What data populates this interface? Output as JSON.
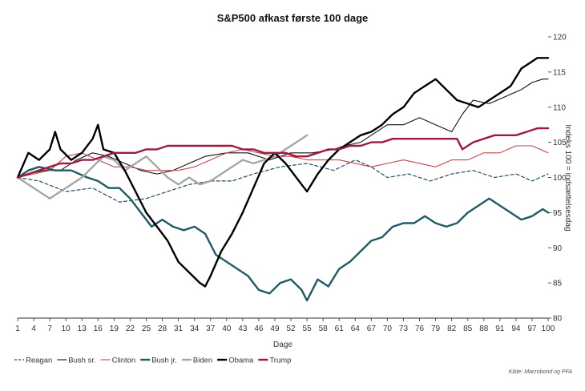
{
  "chart_data": {
    "type": "line",
    "title": "S&P500 afkast første 100 dage",
    "xlabel": "Dage",
    "ylabel": "Indeks 100 = indsættelsesdag",
    "source": "Kilde: Macrobond og PFA",
    "xlim": [
      1,
      100
    ],
    "ylim": [
      80,
      120
    ],
    "x_ticks": [
      1,
      4,
      7,
      10,
      13,
      16,
      19,
      22,
      25,
      28,
      31,
      34,
      37,
      40,
      43,
      46,
      49,
      52,
      55,
      58,
      61,
      64,
      67,
      70,
      73,
      76,
      79,
      82,
      85,
      88,
      91,
      94,
      97,
      100
    ],
    "y_ticks": [
      80,
      85,
      90,
      95,
      100,
      105,
      110,
      115,
      120
    ],
    "series": [
      {
        "name": "Reagan",
        "color": "#1f4e6b",
        "style": "dashed",
        "points": [
          [
            1,
            100
          ],
          [
            5,
            99.5
          ],
          [
            10,
            98
          ],
          [
            15,
            98.5
          ],
          [
            20,
            96.5
          ],
          [
            25,
            97
          ],
          [
            29,
            98
          ],
          [
            33,
            99
          ],
          [
            37,
            99.5
          ],
          [
            41,
            99.5
          ],
          [
            45,
            100.5
          ],
          [
            50,
            101.5
          ],
          [
            55,
            102
          ],
          [
            60,
            101
          ],
          [
            64,
            102.5
          ],
          [
            67,
            101.5
          ],
          [
            70,
            100
          ],
          [
            74,
            100.5
          ],
          [
            78,
            99.5
          ],
          [
            82,
            100.5
          ],
          [
            86,
            101
          ],
          [
            90,
            100
          ],
          [
            94,
            100.5
          ],
          [
            97,
            99.5
          ],
          [
            100,
            100.5
          ]
        ]
      },
      {
        "name": "Bush sr.",
        "color": "#111111",
        "style": "thin",
        "points": [
          [
            1,
            100
          ],
          [
            3,
            100.5
          ],
          [
            6,
            101
          ],
          [
            9,
            101
          ],
          [
            12,
            102.5
          ],
          [
            15,
            103.5
          ],
          [
            18,
            103
          ],
          [
            21,
            102
          ],
          [
            24,
            101
          ],
          [
            27,
            100.5
          ],
          [
            30,
            101
          ],
          [
            33,
            102
          ],
          [
            36,
            103
          ],
          [
            40,
            103.5
          ],
          [
            44,
            103.5
          ],
          [
            48,
            102.5
          ],
          [
            52,
            103.5
          ],
          [
            56,
            103.5
          ],
          [
            60,
            104
          ],
          [
            62,
            104.5
          ],
          [
            65,
            105
          ],
          [
            67,
            106
          ],
          [
            70,
            107.5
          ],
          [
            73,
            107.5
          ],
          [
            76,
            108.5
          ],
          [
            79,
            107.5
          ],
          [
            82,
            106.5
          ],
          [
            84,
            109
          ],
          [
            86,
            111
          ],
          [
            89,
            110.5
          ],
          [
            92,
            111.5
          ],
          [
            95,
            112.5
          ],
          [
            97,
            113.5
          ],
          [
            99,
            114
          ],
          [
            100,
            114
          ]
        ]
      },
      {
        "name": "Clinton",
        "color": "#c0464e",
        "style": "thin",
        "points": [
          [
            1,
            100
          ],
          [
            4,
            100.5
          ],
          [
            7,
            101
          ],
          [
            10,
            103
          ],
          [
            13,
            103.5
          ],
          [
            16,
            102.5
          ],
          [
            19,
            101.5
          ],
          [
            22,
            101.5
          ],
          [
            25,
            101
          ],
          [
            28,
            101
          ],
          [
            31,
            101
          ],
          [
            34,
            101.5
          ],
          [
            37,
            102.5
          ],
          [
            40,
            103.5
          ],
          [
            43,
            104
          ],
          [
            46,
            103.5
          ],
          [
            49,
            103
          ],
          [
            52,
            103
          ],
          [
            55,
            102.5
          ],
          [
            58,
            102.5
          ],
          [
            61,
            102.5
          ],
          [
            64,
            102
          ],
          [
            67,
            101.5
          ],
          [
            70,
            102
          ],
          [
            73,
            102.5
          ],
          [
            76,
            102
          ],
          [
            79,
            101.5
          ],
          [
            82,
            102.5
          ],
          [
            85,
            102.5
          ],
          [
            88,
            103.5
          ],
          [
            91,
            103.5
          ],
          [
            94,
            104.5
          ],
          [
            97,
            104.5
          ],
          [
            100,
            103.5
          ]
        ]
      },
      {
        "name": "Bush jr.",
        "color": "#1f5a66",
        "style": "thick",
        "points": [
          [
            1,
            100
          ],
          [
            3,
            101
          ],
          [
            5,
            101.5
          ],
          [
            8,
            101
          ],
          [
            11,
            101
          ],
          [
            14,
            100
          ],
          [
            16,
            99.5
          ],
          [
            18,
            98.5
          ],
          [
            20,
            98.5
          ],
          [
            22,
            97
          ],
          [
            24,
            95
          ],
          [
            26,
            93
          ],
          [
            28,
            94
          ],
          [
            30,
            93
          ],
          [
            32,
            92.5
          ],
          [
            34,
            93
          ],
          [
            36,
            92
          ],
          [
            38,
            89
          ],
          [
            40,
            88
          ],
          [
            42,
            87
          ],
          [
            44,
            86
          ],
          [
            46,
            84
          ],
          [
            48,
            83.5
          ],
          [
            50,
            85
          ],
          [
            52,
            85.5
          ],
          [
            54,
            84
          ],
          [
            55,
            82.5
          ],
          [
            57,
            85.5
          ],
          [
            59,
            84.5
          ],
          [
            61,
            87
          ],
          [
            63,
            88
          ],
          [
            65,
            89.5
          ],
          [
            67,
            91
          ],
          [
            69,
            91.5
          ],
          [
            71,
            93
          ],
          [
            73,
            93.5
          ],
          [
            75,
            93.5
          ],
          [
            77,
            94.5
          ],
          [
            79,
            93.5
          ],
          [
            81,
            93
          ],
          [
            83,
            93.5
          ],
          [
            85,
            95
          ],
          [
            87,
            96
          ],
          [
            89,
            97
          ],
          [
            91,
            96
          ],
          [
            93,
            95
          ],
          [
            95,
            94
          ],
          [
            97,
            94.5
          ],
          [
            99,
            95.5
          ],
          [
            100,
            95
          ]
        ]
      },
      {
        "name": "Biden",
        "color": "#a6a6a6",
        "style": "thick",
        "points": [
          [
            1,
            100
          ],
          [
            3,
            99
          ],
          [
            5,
            98
          ],
          [
            7,
            97
          ],
          [
            9,
            98
          ],
          [
            11,
            99
          ],
          [
            13,
            100
          ],
          [
            15,
            101.5
          ],
          [
            17,
            103
          ],
          [
            19,
            102.5
          ],
          [
            21,
            101
          ],
          [
            23,
            102
          ],
          [
            25,
            103
          ],
          [
            27,
            101.5
          ],
          [
            29,
            100
          ],
          [
            31,
            99
          ],
          [
            33,
            100
          ],
          [
            35,
            99
          ],
          [
            37,
            99.5
          ],
          [
            39,
            100.5
          ],
          [
            41,
            101.5
          ],
          [
            43,
            102.5
          ],
          [
            45,
            102
          ],
          [
            47,
            102.5
          ],
          [
            49,
            103
          ],
          [
            51,
            104
          ],
          [
            53,
            105
          ],
          [
            55,
            106
          ]
        ]
      },
      {
        "name": "Obama",
        "color": "#000000",
        "style": "thick",
        "points": [
          [
            1,
            100
          ],
          [
            3,
            103.5
          ],
          [
            5,
            102.5
          ],
          [
            7,
            104
          ],
          [
            8,
            106.5
          ],
          [
            9,
            104
          ],
          [
            11,
            102.5
          ],
          [
            13,
            103.5
          ],
          [
            15,
            105.5
          ],
          [
            16,
            107.5
          ],
          [
            17,
            104
          ],
          [
            19,
            103.5
          ],
          [
            21,
            101
          ],
          [
            23,
            98
          ],
          [
            25,
            95
          ],
          [
            27,
            93
          ],
          [
            29,
            91
          ],
          [
            31,
            88
          ],
          [
            33,
            86.5
          ],
          [
            35,
            85
          ],
          [
            36,
            84.5
          ],
          [
            37,
            86
          ],
          [
            39,
            89.5
          ],
          [
            41,
            92
          ],
          [
            43,
            95
          ],
          [
            45,
            98.5
          ],
          [
            47,
            102
          ],
          [
            49,
            103.5
          ],
          [
            51,
            102
          ],
          [
            53,
            100
          ],
          [
            55,
            98
          ],
          [
            57,
            100.5
          ],
          [
            59,
            102.5
          ],
          [
            61,
            104
          ],
          [
            63,
            105
          ],
          [
            65,
            106
          ],
          [
            67,
            106.5
          ],
          [
            69,
            107.5
          ],
          [
            71,
            109
          ],
          [
            73,
            110
          ],
          [
            75,
            112
          ],
          [
            77,
            113
          ],
          [
            79,
            114
          ],
          [
            81,
            112.5
          ],
          [
            83,
            111
          ],
          [
            85,
            110.5
          ],
          [
            87,
            110
          ],
          [
            89,
            111
          ],
          [
            91,
            112
          ],
          [
            93,
            113
          ],
          [
            95,
            115.5
          ],
          [
            97,
            116.5
          ],
          [
            98,
            117
          ],
          [
            100,
            117
          ]
        ]
      },
      {
        "name": "Trump",
        "color": "#9e1b3f",
        "style": "thick",
        "points": [
          [
            1,
            100
          ],
          [
            3,
            100.5
          ],
          [
            5,
            101
          ],
          [
            7,
            101.5
          ],
          [
            9,
            102
          ],
          [
            11,
            102
          ],
          [
            13,
            102.5
          ],
          [
            15,
            102.5
          ],
          [
            17,
            103
          ],
          [
            19,
            103.5
          ],
          [
            21,
            103.5
          ],
          [
            23,
            103.5
          ],
          [
            25,
            104
          ],
          [
            27,
            104
          ],
          [
            29,
            104.5
          ],
          [
            31,
            104.5
          ],
          [
            33,
            104.5
          ],
          [
            35,
            104.5
          ],
          [
            37,
            104.5
          ],
          [
            39,
            104.5
          ],
          [
            41,
            104.5
          ],
          [
            43,
            104
          ],
          [
            45,
            104
          ],
          [
            47,
            103.5
          ],
          [
            49,
            103.5
          ],
          [
            51,
            103.5
          ],
          [
            53,
            103
          ],
          [
            55,
            103
          ],
          [
            57,
            103.5
          ],
          [
            59,
            104
          ],
          [
            61,
            104
          ],
          [
            63,
            104.5
          ],
          [
            65,
            104.5
          ],
          [
            67,
            105
          ],
          [
            69,
            105
          ],
          [
            71,
            105.5
          ],
          [
            73,
            105.5
          ],
          [
            75,
            105.5
          ],
          [
            77,
            105.5
          ],
          [
            79,
            105.5
          ],
          [
            81,
            105.5
          ],
          [
            83,
            105.5
          ],
          [
            84,
            104
          ],
          [
            86,
            105
          ],
          [
            88,
            105.5
          ],
          [
            90,
            106
          ],
          [
            92,
            106
          ],
          [
            94,
            106
          ],
          [
            96,
            106.5
          ],
          [
            98,
            107
          ],
          [
            100,
            107
          ]
        ]
      }
    ]
  }
}
